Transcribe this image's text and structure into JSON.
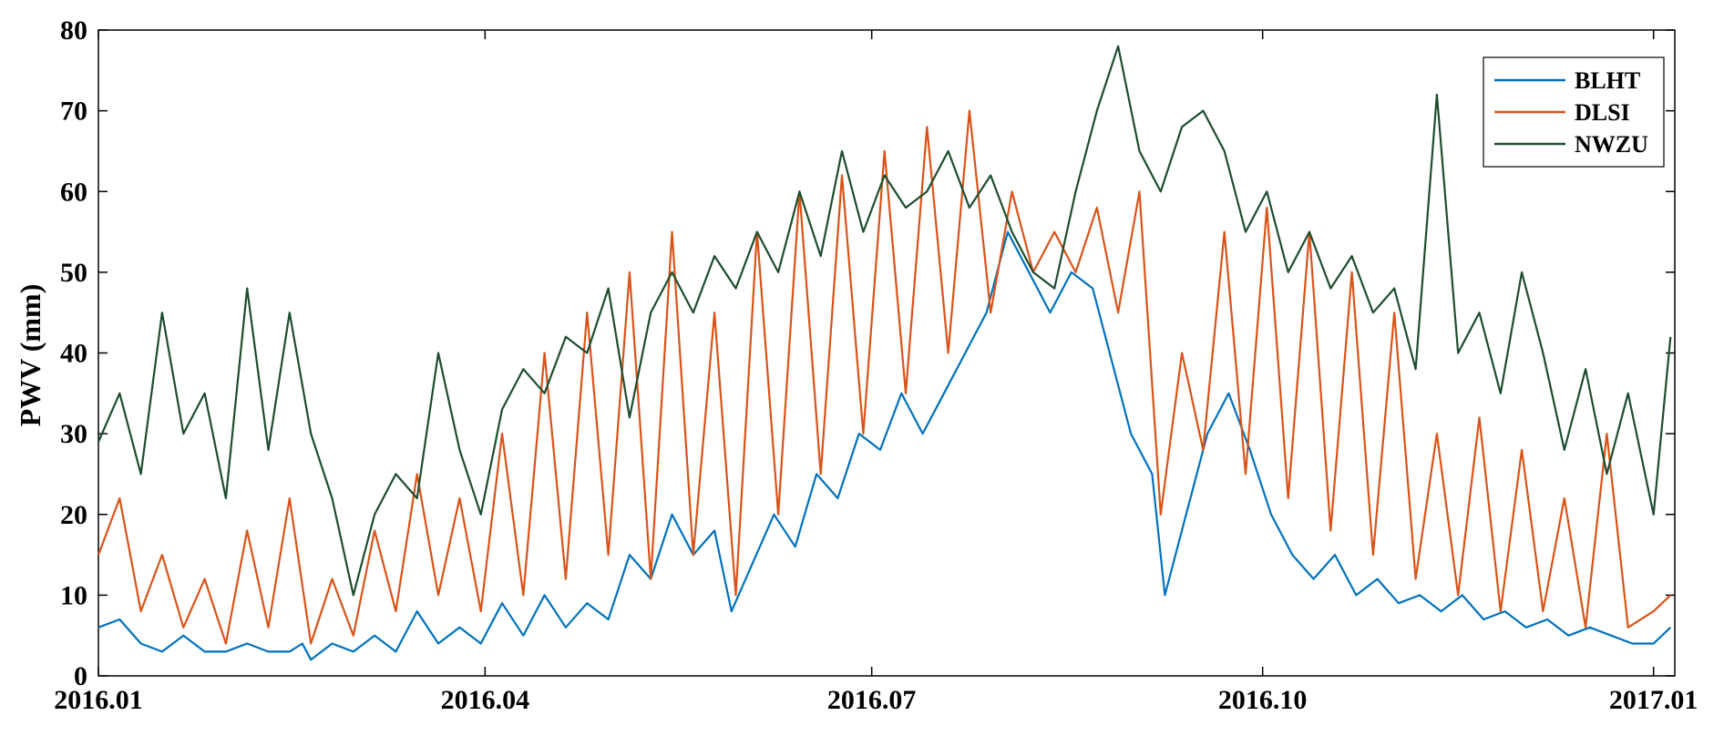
{
  "chart_data": {
    "type": "line",
    "title": "",
    "xlabel": "",
    "ylabel": "PWV (mm)",
    "xlim": [
      "2016-01-01",
      "2017-01-06"
    ],
    "ylim": [
      0,
      80
    ],
    "x_ticks": [
      "2016.01",
      "2016.04",
      "2016.07",
      "2016.10",
      "2017.01"
    ],
    "y_ticks": [
      "0",
      "10",
      "20",
      "30",
      "40",
      "50",
      "60",
      "70",
      "80"
    ],
    "grid": false,
    "legend_position": "top-right",
    "colors": {
      "BLHT": "#0072BD",
      "DLSI": "#D95319",
      "NWZU": "#1D4D2E"
    },
    "series": [
      {
        "name": "BLHT",
        "points": [
          [
            "2016-01-01",
            6
          ],
          [
            "2016-01-06",
            7
          ],
          [
            "2016-01-11",
            4
          ],
          [
            "2016-01-16",
            3
          ],
          [
            "2016-01-21",
            5
          ],
          [
            "2016-01-26",
            3
          ],
          [
            "2016-01-31",
            3
          ],
          [
            "2016-02-05",
            4
          ],
          [
            "2016-02-10",
            3
          ],
          [
            "2016-02-15",
            3
          ],
          [
            "2016-02-18",
            4
          ],
          [
            "2016-02-20",
            2
          ],
          [
            "2016-02-25",
            4
          ],
          [
            "2016-03-01",
            3
          ],
          [
            "2016-03-06",
            5
          ],
          [
            "2016-03-11",
            3
          ],
          [
            "2016-03-16",
            8
          ],
          [
            "2016-03-21",
            4
          ],
          [
            "2016-03-26",
            6
          ],
          [
            "2016-03-31",
            4
          ],
          [
            "2016-04-05",
            9
          ],
          [
            "2016-04-10",
            5
          ],
          [
            "2016-04-15",
            10
          ],
          [
            "2016-04-20",
            6
          ],
          [
            "2016-04-25",
            9
          ],
          [
            "2016-04-30",
            7
          ],
          [
            "2016-05-05",
            15
          ],
          [
            "2016-05-10",
            12
          ],
          [
            "2016-05-15",
            20
          ],
          [
            "2016-05-20",
            15
          ],
          [
            "2016-05-25",
            18
          ],
          [
            "2016-05-29",
            8
          ],
          [
            "2016-06-03",
            14
          ],
          [
            "2016-06-08",
            20
          ],
          [
            "2016-06-13",
            16
          ],
          [
            "2016-06-18",
            25
          ],
          [
            "2016-06-23",
            22
          ],
          [
            "2016-06-28",
            30
          ],
          [
            "2016-07-03",
            28
          ],
          [
            "2016-07-08",
            35
          ],
          [
            "2016-07-13",
            30
          ],
          [
            "2016-07-18",
            35
          ],
          [
            "2016-07-23",
            40
          ],
          [
            "2016-07-28",
            45
          ],
          [
            "2016-08-02",
            55
          ],
          [
            "2016-08-07",
            50
          ],
          [
            "2016-08-12",
            45
          ],
          [
            "2016-08-17",
            50
          ],
          [
            "2016-08-22",
            48
          ],
          [
            "2016-08-26",
            40
          ],
          [
            "2016-08-31",
            30
          ],
          [
            "2016-09-05",
            25
          ],
          [
            "2016-09-08",
            10
          ],
          [
            "2016-09-13",
            20
          ],
          [
            "2016-09-18",
            30
          ],
          [
            "2016-09-23",
            35
          ],
          [
            "2016-09-28",
            28
          ],
          [
            "2016-10-03",
            20
          ],
          [
            "2016-10-08",
            15
          ],
          [
            "2016-10-13",
            12
          ],
          [
            "2016-10-18",
            15
          ],
          [
            "2016-10-23",
            10
          ],
          [
            "2016-10-28",
            12
          ],
          [
            "2016-11-02",
            9
          ],
          [
            "2016-11-07",
            10
          ],
          [
            "2016-11-12",
            8
          ],
          [
            "2016-11-17",
            10
          ],
          [
            "2016-11-22",
            7
          ],
          [
            "2016-11-27",
            8
          ],
          [
            "2016-12-02",
            6
          ],
          [
            "2016-12-07",
            7
          ],
          [
            "2016-12-12",
            5
          ],
          [
            "2016-12-17",
            6
          ],
          [
            "2016-12-22",
            5
          ],
          [
            "2016-12-27",
            4
          ],
          [
            "2017-01-01",
            4
          ],
          [
            "2017-01-05",
            6
          ]
        ]
      },
      {
        "name": "DLSI",
        "points": [
          [
            "2016-01-01",
            15
          ],
          [
            "2016-01-06",
            22
          ],
          [
            "2016-01-11",
            8
          ],
          [
            "2016-01-16",
            15
          ],
          [
            "2016-01-21",
            6
          ],
          [
            "2016-01-26",
            12
          ],
          [
            "2016-01-31",
            4
          ],
          [
            "2016-02-05",
            18
          ],
          [
            "2016-02-10",
            6
          ],
          [
            "2016-02-15",
            22
          ],
          [
            "2016-02-20",
            4
          ],
          [
            "2016-02-25",
            12
          ],
          [
            "2016-03-01",
            5
          ],
          [
            "2016-03-06",
            18
          ],
          [
            "2016-03-11",
            8
          ],
          [
            "2016-03-16",
            25
          ],
          [
            "2016-03-21",
            10
          ],
          [
            "2016-03-26",
            22
          ],
          [
            "2016-03-31",
            8
          ],
          [
            "2016-04-05",
            30
          ],
          [
            "2016-04-10",
            10
          ],
          [
            "2016-04-15",
            40
          ],
          [
            "2016-04-20",
            12
          ],
          [
            "2016-04-25",
            45
          ],
          [
            "2016-04-30",
            15
          ],
          [
            "2016-05-05",
            50
          ],
          [
            "2016-05-10",
            12
          ],
          [
            "2016-05-15",
            55
          ],
          [
            "2016-05-20",
            15
          ],
          [
            "2016-05-25",
            45
          ],
          [
            "2016-05-30",
            10
          ],
          [
            "2016-06-04",
            55
          ],
          [
            "2016-06-09",
            20
          ],
          [
            "2016-06-14",
            60
          ],
          [
            "2016-06-19",
            25
          ],
          [
            "2016-06-24",
            62
          ],
          [
            "2016-06-29",
            30
          ],
          [
            "2016-07-04",
            65
          ],
          [
            "2016-07-09",
            35
          ],
          [
            "2016-07-14",
            68
          ],
          [
            "2016-07-19",
            40
          ],
          [
            "2016-07-24",
            70
          ],
          [
            "2016-07-29",
            45
          ],
          [
            "2016-08-03",
            60
          ],
          [
            "2016-08-08",
            50
          ],
          [
            "2016-08-13",
            55
          ],
          [
            "2016-08-18",
            50
          ],
          [
            "2016-08-23",
            58
          ],
          [
            "2016-08-28",
            45
          ],
          [
            "2016-09-02",
            60
          ],
          [
            "2016-09-07",
            20
          ],
          [
            "2016-09-12",
            40
          ],
          [
            "2016-09-17",
            28
          ],
          [
            "2016-09-22",
            55
          ],
          [
            "2016-09-27",
            25
          ],
          [
            "2016-10-02",
            58
          ],
          [
            "2016-10-07",
            22
          ],
          [
            "2016-10-12",
            55
          ],
          [
            "2016-10-17",
            18
          ],
          [
            "2016-10-22",
            50
          ],
          [
            "2016-10-27",
            15
          ],
          [
            "2016-11-01",
            45
          ],
          [
            "2016-11-06",
            12
          ],
          [
            "2016-11-11",
            30
          ],
          [
            "2016-11-16",
            10
          ],
          [
            "2016-11-21",
            32
          ],
          [
            "2016-11-26",
            8
          ],
          [
            "2016-12-01",
            28
          ],
          [
            "2016-12-06",
            8
          ],
          [
            "2016-12-11",
            22
          ],
          [
            "2016-12-16",
            6
          ],
          [
            "2016-12-21",
            30
          ],
          [
            "2016-12-26",
            6
          ],
          [
            "2017-01-01",
            8
          ],
          [
            "2017-01-05",
            10
          ]
        ]
      },
      {
        "name": "NWZU",
        "points": [
          [
            "2016-01-01",
            29
          ],
          [
            "2016-01-06",
            35
          ],
          [
            "2016-01-11",
            25
          ],
          [
            "2016-01-16",
            45
          ],
          [
            "2016-01-21",
            30
          ],
          [
            "2016-01-26",
            35
          ],
          [
            "2016-01-31",
            22
          ],
          [
            "2016-02-05",
            48
          ],
          [
            "2016-02-10",
            28
          ],
          [
            "2016-02-15",
            45
          ],
          [
            "2016-02-20",
            30
          ],
          [
            "2016-02-25",
            22
          ],
          [
            "2016-03-01",
            10
          ],
          [
            "2016-03-06",
            20
          ],
          [
            "2016-03-11",
            25
          ],
          [
            "2016-03-16",
            22
          ],
          [
            "2016-03-21",
            40
          ],
          [
            "2016-03-26",
            28
          ],
          [
            "2016-03-31",
            20
          ],
          [
            "2016-04-05",
            33
          ],
          [
            "2016-04-10",
            38
          ],
          [
            "2016-04-15",
            35
          ],
          [
            "2016-04-20",
            42
          ],
          [
            "2016-04-25",
            40
          ],
          [
            "2016-04-30",
            48
          ],
          [
            "2016-05-05",
            32
          ],
          [
            "2016-05-10",
            45
          ],
          [
            "2016-05-15",
            50
          ],
          [
            "2016-05-20",
            45
          ],
          [
            "2016-05-25",
            52
          ],
          [
            "2016-05-30",
            48
          ],
          [
            "2016-06-04",
            55
          ],
          [
            "2016-06-09",
            50
          ],
          [
            "2016-06-14",
            60
          ],
          [
            "2016-06-19",
            52
          ],
          [
            "2016-06-24",
            65
          ],
          [
            "2016-06-29",
            55
          ],
          [
            "2016-07-04",
            62
          ],
          [
            "2016-07-09",
            58
          ],
          [
            "2016-07-14",
            60
          ],
          [
            "2016-07-19",
            65
          ],
          [
            "2016-07-24",
            58
          ],
          [
            "2016-07-29",
            62
          ],
          [
            "2016-08-03",
            55
          ],
          [
            "2016-08-08",
            50
          ],
          [
            "2016-08-13",
            48
          ],
          [
            "2016-08-18",
            60
          ],
          [
            "2016-08-23",
            70
          ],
          [
            "2016-08-28",
            78
          ],
          [
            "2016-09-02",
            65
          ],
          [
            "2016-09-07",
            60
          ],
          [
            "2016-09-12",
            68
          ],
          [
            "2016-09-17",
            70
          ],
          [
            "2016-09-22",
            65
          ],
          [
            "2016-09-27",
            55
          ],
          [
            "2016-10-02",
            60
          ],
          [
            "2016-10-07",
            50
          ],
          [
            "2016-10-12",
            55
          ],
          [
            "2016-10-17",
            48
          ],
          [
            "2016-10-22",
            52
          ],
          [
            "2016-10-27",
            45
          ],
          [
            "2016-11-01",
            48
          ],
          [
            "2016-11-06",
            38
          ],
          [
            "2016-11-11",
            72
          ],
          [
            "2016-11-16",
            40
          ],
          [
            "2016-11-21",
            45
          ],
          [
            "2016-11-26",
            35
          ],
          [
            "2016-12-01",
            50
          ],
          [
            "2016-12-06",
            40
          ],
          [
            "2016-12-11",
            28
          ],
          [
            "2016-12-16",
            38
          ],
          [
            "2016-12-21",
            25
          ],
          [
            "2016-12-26",
            35
          ],
          [
            "2017-01-01",
            20
          ],
          [
            "2017-01-05",
            42
          ]
        ]
      }
    ]
  }
}
